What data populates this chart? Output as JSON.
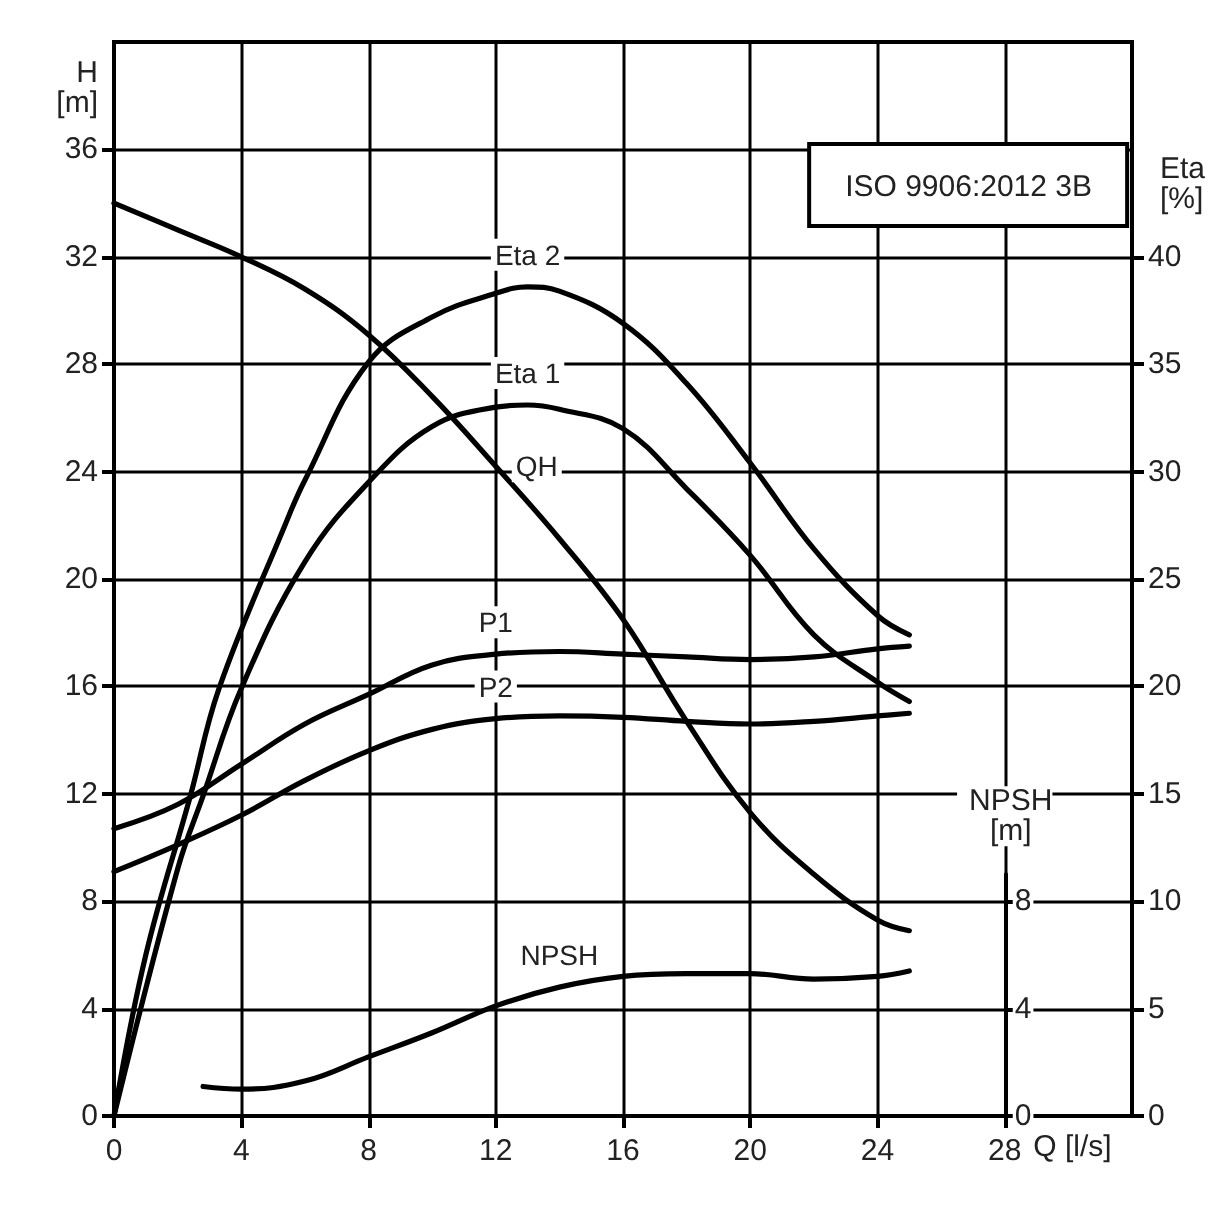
{
  "chart_data": {
    "type": "line",
    "xlabel": "Q [l/s]",
    "ylabel": "H [m]",
    "y2label": "Eta [%]",
    "y3label": "NPSH [m]",
    "annotations": [
      "ISO 9906:2012 3B"
    ],
    "xlim": [
      0,
      32
    ],
    "xticks": [
      0,
      4,
      8,
      12,
      16,
      20,
      24,
      28
    ],
    "ylim": [
      0,
      40
    ],
    "yticks": [
      0,
      4,
      8,
      12,
      16,
      20,
      24,
      28,
      32,
      36
    ],
    "y2lim": [
      0,
      50
    ],
    "y2ticks": [
      0,
      5,
      10,
      15,
      20,
      25,
      30,
      35,
      40
    ],
    "y3lim": [
      0,
      9
    ],
    "y3ticks": [
      0,
      4,
      8
    ],
    "grid": true,
    "legend": false,
    "marker": "none",
    "line_style": "solid",
    "series": [
      {
        "name": "QH",
        "color": "#000000",
        "x": [
          0,
          2,
          4,
          6,
          8,
          10,
          12,
          14,
          16,
          18,
          20,
          22,
          24,
          25
        ],
        "values": [
          34,
          33,
          32,
          30.8,
          29.1,
          26.8,
          24.2,
          21.5,
          18.5,
          14.7,
          11.3,
          9,
          7.3,
          6.9
        ]
      },
      {
        "name": "Eta 2",
        "color": "#000000",
        "axis": "y2",
        "x": [
          0,
          1,
          2.4,
          3.3,
          5.4,
          6,
          8,
          10,
          12,
          13,
          14,
          16,
          18,
          20,
          22,
          24,
          25
        ],
        "values": [
          0,
          7.5,
          14.9,
          19.9,
          27.6,
          29.6,
          35.1,
          37.2,
          38.3,
          38.6,
          38.4,
          36.9,
          34.1,
          30.4,
          26.4,
          23.3,
          22.4
        ]
      },
      {
        "name": "Eta 1",
        "color": "#000000",
        "axis": "y2",
        "x": [
          0,
          2,
          2.8,
          4,
          6,
          8,
          10,
          12,
          13,
          14,
          16,
          18,
          20,
          22,
          24,
          25
        ],
        "values": [
          0,
          11.5,
          14.9,
          19.9,
          25.8,
          29.5,
          32.1,
          33,
          33.1,
          32.9,
          32,
          29.2,
          26.1,
          22.4,
          20.2,
          19.3
        ]
      },
      {
        "name": "P1",
        "color": "#000000",
        "x": [
          0,
          2,
          4,
          6,
          8,
          10,
          12,
          14,
          16,
          18,
          20,
          22,
          24,
          25
        ],
        "values": [
          10.7,
          11.6,
          13.1,
          14.6,
          15.7,
          16.8,
          17.2,
          17.3,
          17.2,
          17.1,
          17,
          17.1,
          17.4,
          17.5
        ]
      },
      {
        "name": "P2",
        "color": "#000000",
        "x": [
          0,
          2,
          4,
          6,
          8,
          10,
          12,
          14,
          16,
          18,
          20,
          22,
          24,
          25
        ],
        "values": [
          9.1,
          10.1,
          11.2,
          12.5,
          13.6,
          14.4,
          14.8,
          14.9,
          14.85,
          14.7,
          14.6,
          14.7,
          14.9,
          15
        ]
      },
      {
        "name": "NPSH",
        "color": "#000000",
        "axis": "y3",
        "x": [
          2.8,
          4,
          6,
          8,
          10,
          12,
          14,
          16,
          18,
          20,
          22,
          24,
          25
        ],
        "values": [
          1.1,
          1,
          1.3,
          2.2,
          3.1,
          4.1,
          4.8,
          5.2,
          5.3,
          5.3,
          5.1,
          5.2,
          5.4
        ]
      }
    ]
  }
}
